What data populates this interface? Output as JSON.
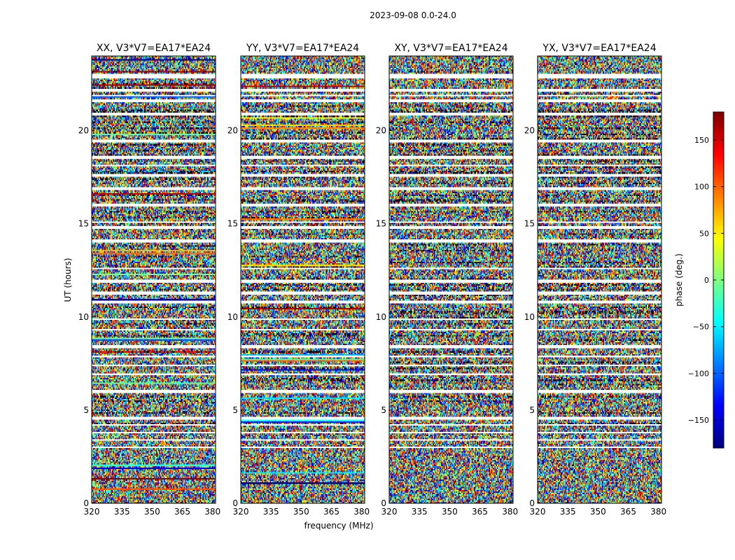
{
  "chart_data": {
    "type": "heatmap",
    "suptitle": "2023-09-08 0.0-24.0",
    "xlabel": "frequency (MHz)",
    "ylabel": "UT (hours)",
    "xlim": [
      320,
      381.5
    ],
    "ylim": [
      0,
      24
    ],
    "xticks": [
      320,
      335,
      350,
      365,
      380
    ],
    "yticks": [
      0,
      5,
      10,
      15,
      20
    ],
    "panels": [
      {
        "id": "xx",
        "title": "XX, V3*V7=EA17*EA24",
        "show_ylabel": true
      },
      {
        "id": "yy",
        "title": "YY, V3*V7=EA17*EA24",
        "show_ylabel": false
      },
      {
        "id": "xy",
        "title": "XY, V3*V7=EA17*EA24",
        "show_ylabel": false
      },
      {
        "id": "yx",
        "title": "YX, V3*V7=EA17*EA24",
        "show_ylabel": false
      }
    ],
    "colorbar": {
      "label": "phase (deg.)",
      "range": [
        -180,
        180
      ],
      "ticks": [
        150,
        100,
        50,
        0,
        -50,
        -100,
        -150
      ],
      "tick_labels": [
        "150",
        "100",
        "50",
        "0",
        "−50",
        "−100",
        "−150"
      ],
      "colormap": "jet"
    },
    "flagged_rows_hours": [
      23.0,
      22.9,
      22.15,
      21.9,
      21.6,
      20.9,
      19.45,
      18.55,
      18.1,
      17.6,
      16.9,
      16.0,
      15.1,
      14.8,
      14.1,
      12.6,
      11.9,
      11.3,
      10.8,
      9.9,
      9.3,
      8.4,
      7.9,
      7.4,
      6.9,
      6.0,
      4.55,
      4.2,
      3.8,
      3.4,
      3.0
    ],
    "colors": {
      "flag": "#ffffff",
      "frame": "#000000",
      "background": "#ffffff"
    }
  }
}
